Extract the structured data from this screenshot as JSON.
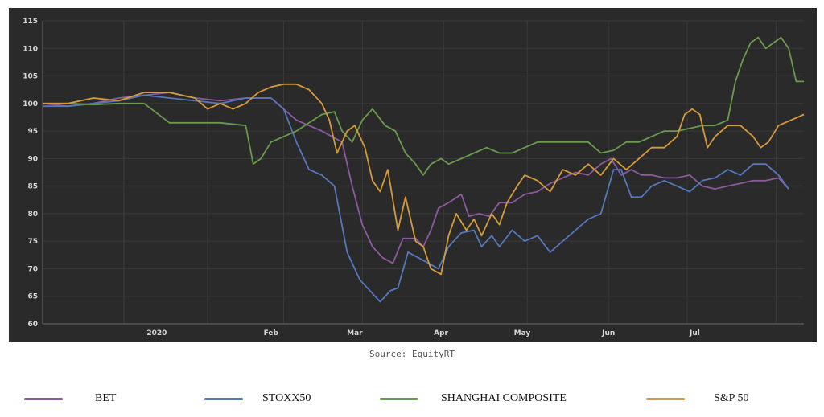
{
  "source": "Source: EquityRT",
  "chart_data": {
    "type": "line",
    "title": "",
    "xlabel": "",
    "ylabel": "",
    "ylim": [
      60,
      115
    ],
    "yticks": [
      60,
      65,
      70,
      75,
      80,
      85,
      90,
      95,
      100,
      105,
      110,
      115
    ],
    "x_domain": [
      0,
      30
    ],
    "x_tick_labels": [
      {
        "label": "2020",
        "x": 4.5
      },
      {
        "label": "Feb",
        "x": 9
      },
      {
        "label": "Mar",
        "x": 12.3
      },
      {
        "label": "Apr",
        "x": 15.7
      },
      {
        "label": "May",
        "x": 18.9
      },
      {
        "label": "Jun",
        "x": 22.3
      },
      {
        "label": "Jul",
        "x": 25.7
      }
    ],
    "x_gridlines": [
      0,
      3.2,
      6.5,
      9.5,
      12.6,
      15.8,
      19.1,
      22.3,
      25.4,
      28.9
    ],
    "grid": true,
    "legend_position": "bottom",
    "series": [
      {
        "name": "BET",
        "color": "#8a5a9e",
        "points": [
          [
            0,
            100
          ],
          [
            1,
            99.5
          ],
          [
            2,
            100
          ],
          [
            3,
            101
          ],
          [
            4,
            101.5
          ],
          [
            5,
            102
          ],
          [
            6,
            101
          ],
          [
            7,
            100.5
          ],
          [
            8,
            101
          ],
          [
            9,
            101
          ],
          [
            10,
            97
          ],
          [
            11,
            95
          ],
          [
            11.8,
            93
          ],
          [
            12.2,
            85
          ],
          [
            12.6,
            78
          ],
          [
            13.0,
            74
          ],
          [
            13.4,
            72
          ],
          [
            13.8,
            71
          ],
          [
            14.2,
            75.5
          ],
          [
            14.7,
            75.5
          ],
          [
            15.0,
            74
          ],
          [
            15.3,
            77
          ],
          [
            15.6,
            81
          ],
          [
            16.0,
            82
          ],
          [
            16.5,
            83.5
          ],
          [
            16.8,
            79.5
          ],
          [
            17.2,
            80
          ],
          [
            17.6,
            79.5
          ],
          [
            18.0,
            82
          ],
          [
            18.5,
            82
          ],
          [
            19.0,
            83.5
          ],
          [
            19.5,
            84
          ],
          [
            20.0,
            85.5
          ],
          [
            20.5,
            86.5
          ],
          [
            21.0,
            87.5
          ],
          [
            21.5,
            87
          ],
          [
            22.0,
            89
          ],
          [
            22.4,
            90
          ],
          [
            22.8,
            87
          ],
          [
            23.2,
            88
          ],
          [
            23.6,
            87
          ],
          [
            24.0,
            87
          ],
          [
            24.5,
            86.5
          ],
          [
            25.0,
            86.5
          ],
          [
            25.5,
            87
          ],
          [
            26.0,
            85
          ],
          [
            26.5,
            84.5
          ],
          [
            27.0,
            85
          ],
          [
            27.5,
            85.5
          ],
          [
            28.0,
            86
          ],
          [
            28.5,
            86
          ],
          [
            29.0,
            86.5
          ],
          [
            29.4,
            84.5
          ]
        ]
      },
      {
        "name": "STOXX50",
        "color": "#5577bb",
        "points": [
          [
            0,
            99.5
          ],
          [
            1,
            99.5
          ],
          [
            2,
            100
          ],
          [
            3,
            100.5
          ],
          [
            4,
            101.5
          ],
          [
            5,
            101
          ],
          [
            6,
            100.5
          ],
          [
            7,
            100
          ],
          [
            8,
            101
          ],
          [
            8.5,
            101
          ],
          [
            9,
            101
          ],
          [
            9.5,
            99
          ],
          [
            10,
            93
          ],
          [
            10.5,
            88
          ],
          [
            11.0,
            87
          ],
          [
            11.5,
            85
          ],
          [
            12.0,
            73
          ],
          [
            12.5,
            68
          ],
          [
            12.9,
            66
          ],
          [
            13.3,
            64
          ],
          [
            13.7,
            66
          ],
          [
            14.0,
            66.5
          ],
          [
            14.4,
            73
          ],
          [
            14.8,
            72
          ],
          [
            15.2,
            71
          ],
          [
            15.6,
            70
          ],
          [
            16.0,
            74
          ],
          [
            16.5,
            76.5
          ],
          [
            17.0,
            77
          ],
          [
            17.3,
            74
          ],
          [
            17.7,
            76
          ],
          [
            18.0,
            74
          ],
          [
            18.5,
            77
          ],
          [
            19.0,
            75
          ],
          [
            19.5,
            76
          ],
          [
            20.0,
            73
          ],
          [
            20.5,
            75
          ],
          [
            21.0,
            77
          ],
          [
            21.5,
            79
          ],
          [
            22.0,
            80
          ],
          [
            22.5,
            88
          ],
          [
            22.8,
            88
          ],
          [
            23.2,
            83
          ],
          [
            23.6,
            83
          ],
          [
            24.0,
            85
          ],
          [
            24.5,
            86
          ],
          [
            25.0,
            85
          ],
          [
            25.5,
            84
          ],
          [
            26.0,
            86
          ],
          [
            26.5,
            86.5
          ],
          [
            27.0,
            88
          ],
          [
            27.5,
            87
          ],
          [
            28.0,
            89
          ],
          [
            28.5,
            89
          ],
          [
            29.0,
            87
          ],
          [
            29.4,
            84.5
          ]
        ]
      },
      {
        "name": "SHANGHAI COMPOSITE",
        "color": "#6a9a4e",
        "points": [
          [
            0,
            100
          ],
          [
            1,
            100
          ],
          [
            2,
            99.8
          ],
          [
            3,
            100
          ],
          [
            4,
            100
          ],
          [
            5,
            96.5
          ],
          [
            6,
            96.5
          ],
          [
            7,
            96.5
          ],
          [
            8,
            96
          ],
          [
            8.3,
            89
          ],
          [
            8.6,
            90
          ],
          [
            9,
            93
          ],
          [
            9.5,
            94
          ],
          [
            10,
            95
          ],
          [
            10.5,
            96.5
          ],
          [
            11,
            98
          ],
          [
            11.5,
            98.5
          ],
          [
            11.8,
            95
          ],
          [
            12.2,
            93
          ],
          [
            12.6,
            97
          ],
          [
            13.0,
            99
          ],
          [
            13.5,
            96
          ],
          [
            13.9,
            95
          ],
          [
            14.3,
            91
          ],
          [
            14.7,
            89
          ],
          [
            15.0,
            87
          ],
          [
            15.3,
            89
          ],
          [
            15.7,
            90
          ],
          [
            16.0,
            89
          ],
          [
            16.5,
            90
          ],
          [
            17.0,
            91
          ],
          [
            17.5,
            92
          ],
          [
            18.0,
            91
          ],
          [
            18.5,
            91
          ],
          [
            19.0,
            92
          ],
          [
            19.5,
            93
          ],
          [
            20.0,
            93
          ],
          [
            20.5,
            93
          ],
          [
            21.0,
            93
          ],
          [
            21.5,
            93
          ],
          [
            22.0,
            91
          ],
          [
            22.5,
            91.5
          ],
          [
            23.0,
            93
          ],
          [
            23.5,
            93
          ],
          [
            24.0,
            94
          ],
          [
            24.5,
            95
          ],
          [
            25.0,
            95
          ],
          [
            25.5,
            95.5
          ],
          [
            26.0,
            96
          ],
          [
            26.5,
            96
          ],
          [
            27.0,
            97
          ],
          [
            27.3,
            104
          ],
          [
            27.6,
            108
          ],
          [
            27.9,
            111
          ],
          [
            28.2,
            112
          ],
          [
            28.5,
            110
          ],
          [
            28.8,
            111
          ],
          [
            29.1,
            112
          ],
          [
            29.4,
            110
          ],
          [
            29.7,
            104
          ],
          [
            30.0,
            104
          ]
        ]
      },
      {
        "name": "S&P 50",
        "color": "#d59a3c",
        "points": [
          [
            0,
            100
          ],
          [
            1,
            100
          ],
          [
            2,
            101
          ],
          [
            3,
            100.5
          ],
          [
            4,
            102
          ],
          [
            5,
            102
          ],
          [
            6,
            101
          ],
          [
            6.5,
            99
          ],
          [
            7,
            100
          ],
          [
            7.5,
            99
          ],
          [
            8,
            100
          ],
          [
            8.5,
            102
          ],
          [
            9,
            103
          ],
          [
            9.5,
            103.5
          ],
          [
            10,
            103.5
          ],
          [
            10.5,
            102.5
          ],
          [
            11,
            100
          ],
          [
            11.3,
            97
          ],
          [
            11.6,
            91
          ],
          [
            12.0,
            95
          ],
          [
            12.3,
            96
          ],
          [
            12.7,
            92
          ],
          [
            13.0,
            86
          ],
          [
            13.3,
            84
          ],
          [
            13.6,
            88
          ],
          [
            14.0,
            77
          ],
          [
            14.3,
            83
          ],
          [
            14.7,
            75
          ],
          [
            15.0,
            74
          ],
          [
            15.3,
            70
          ],
          [
            15.7,
            69
          ],
          [
            16.0,
            76
          ],
          [
            16.3,
            80
          ],
          [
            16.7,
            77
          ],
          [
            17.0,
            79
          ],
          [
            17.3,
            76
          ],
          [
            17.7,
            80
          ],
          [
            18.0,
            78
          ],
          [
            18.3,
            82
          ],
          [
            18.7,
            85
          ],
          [
            19.0,
            87
          ],
          [
            19.5,
            86
          ],
          [
            20.0,
            84
          ],
          [
            20.5,
            88
          ],
          [
            21.0,
            87
          ],
          [
            21.5,
            89
          ],
          [
            22.0,
            87
          ],
          [
            22.5,
            90
          ],
          [
            23.0,
            88
          ],
          [
            23.5,
            90
          ],
          [
            24.0,
            92
          ],
          [
            24.5,
            92
          ],
          [
            25.0,
            94
          ],
          [
            25.3,
            98
          ],
          [
            25.6,
            99
          ],
          [
            25.9,
            98
          ],
          [
            26.2,
            92
          ],
          [
            26.5,
            94
          ],
          [
            27.0,
            96
          ],
          [
            27.5,
            96
          ],
          [
            28.0,
            94
          ],
          [
            28.3,
            92
          ],
          [
            28.6,
            93
          ],
          [
            29.0,
            96
          ],
          [
            29.5,
            97
          ],
          [
            30.0,
            98
          ]
        ]
      }
    ]
  }
}
